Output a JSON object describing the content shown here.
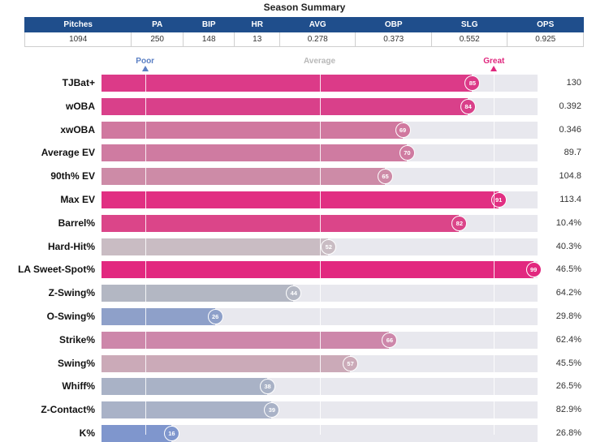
{
  "title": "Season Summary",
  "summary": {
    "headers": [
      "Pitches",
      "PA",
      "BIP",
      "HR",
      "AVG",
      "OBP",
      "SLG",
      "OPS"
    ],
    "values": [
      "1094",
      "250",
      "148",
      "13",
      "0.278",
      "0.373",
      "0.552",
      "0.925"
    ]
  },
  "scale": {
    "poor": {
      "label": "Poor",
      "percentile": 10,
      "color": "#5a7fc4"
    },
    "average": {
      "label": "Average",
      "percentile": 50,
      "color": "#b8b8b8"
    },
    "great": {
      "label": "Great",
      "percentile": 90,
      "color": "#e0287e"
    }
  },
  "chart_data": {
    "type": "bar",
    "orientation": "horizontal",
    "title": "",
    "xlim": [
      0,
      100
    ],
    "categories": [
      "TJBat+",
      "wOBA",
      "xwOBA",
      "Average EV",
      "90th% EV",
      "Max EV",
      "Barrel%",
      "Hard-Hit%",
      "LA Sweet-Spot%",
      "Z-Swing%",
      "O-Swing%",
      "Strike%",
      "Swing%",
      "Whiff%",
      "Z-Contact%",
      "K%"
    ],
    "percentiles": [
      85,
      84,
      69,
      70,
      65,
      91,
      82,
      52,
      99,
      44,
      26,
      66,
      57,
      38,
      39,
      16
    ],
    "values": [
      "130",
      "0.392",
      "0.346",
      "89.7",
      "104.8",
      "113.4",
      "10.4%",
      "40.3%",
      "46.5%",
      "64.2%",
      "29.8%",
      "62.4%",
      "45.5%",
      "26.5%",
      "82.9%",
      "26.8%"
    ],
    "colors": [
      "#dc3a88",
      "#d9408a",
      "#d0789f",
      "#cf7ba1",
      "#cd8ba7",
      "#e12f82",
      "#db4589",
      "#c9bcc3",
      "#e2287f",
      "#b3b7c3",
      "#8ea0c9",
      "#cd87aa",
      "#cbaab8",
      "#a9b2c6",
      "#a9b2c7",
      "#7f96cd"
    ]
  }
}
